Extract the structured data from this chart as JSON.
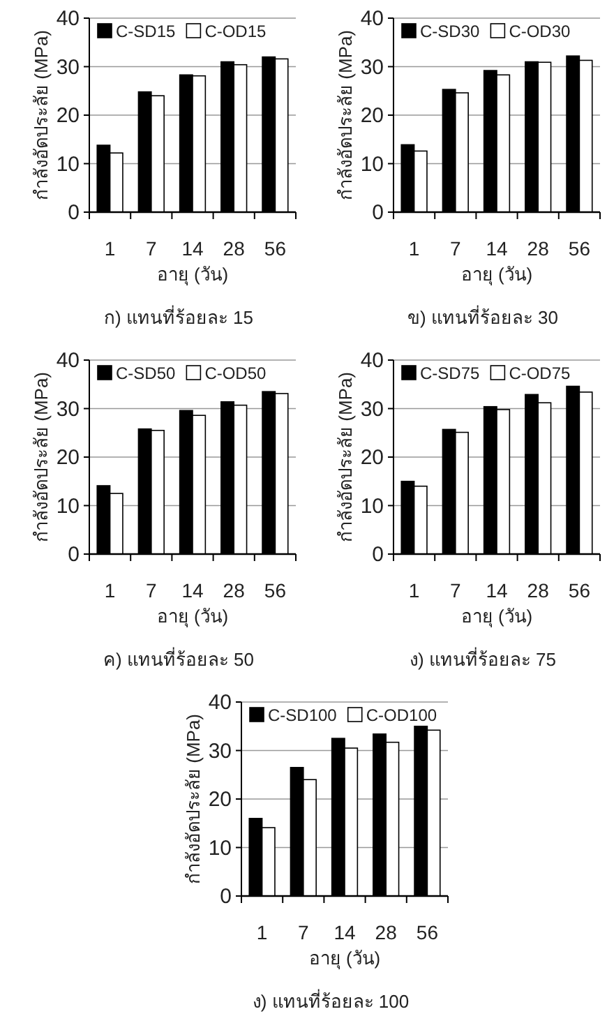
{
  "chart_data": [
    {
      "type": "bar",
      "title": "ก) แทนที่ร้อยละ 15",
      "xlabel": "อายุ (วัน)",
      "ylabel": "กำลังอัดประลัย (MPa)",
      "categories": [
        "1",
        "7",
        "14",
        "28",
        "56"
      ],
      "ylim": [
        0,
        40
      ],
      "yticks": [
        0,
        10,
        20,
        30,
        40
      ],
      "grid": "y",
      "legend": "top",
      "series": [
        {
          "name": "C-SD15",
          "color": "#000000",
          "values": [
            13.8,
            24.8,
            28.3,
            31,
            32
          ]
        },
        {
          "name": "C-OD15",
          "color": "#ffffff",
          "values": [
            12.2,
            24,
            28.1,
            30.4,
            31.6
          ]
        }
      ]
    },
    {
      "type": "bar",
      "title": "ข) แทนที่ร้อยละ 30",
      "xlabel": "อายุ (วัน)",
      "ylabel": "กำลังอัดประลัย (MPa)",
      "categories": [
        "1",
        "7",
        "14",
        "28",
        "56"
      ],
      "ylim": [
        0,
        40
      ],
      "yticks": [
        0,
        10,
        20,
        30,
        40
      ],
      "grid": "y",
      "legend": "top",
      "series": [
        {
          "name": "C-SD30",
          "color": "#000000",
          "values": [
            13.9,
            25.3,
            29.2,
            31,
            32.2
          ]
        },
        {
          "name": "C-OD30",
          "color": "#ffffff",
          "values": [
            12.6,
            24.6,
            28.3,
            30.9,
            31.3
          ]
        }
      ]
    },
    {
      "type": "bar",
      "title": "ค) แทนที่ร้อยละ 50",
      "xlabel": "อายุ (วัน)",
      "ylabel": "กำลังอัดประลัย (MPa)",
      "categories": [
        "1",
        "7",
        "14",
        "28",
        "56"
      ],
      "ylim": [
        0,
        40
      ],
      "yticks": [
        0,
        10,
        20,
        30,
        40
      ],
      "grid": "y",
      "legend": "top",
      "series": [
        {
          "name": "C-SD50",
          "color": "#000000",
          "values": [
            14.1,
            25.8,
            29.6,
            31.4,
            33.5
          ]
        },
        {
          "name": "C-OD50",
          "color": "#ffffff",
          "values": [
            12.5,
            25.5,
            28.6,
            30.7,
            33.1
          ]
        }
      ]
    },
    {
      "type": "bar",
      "title": "ง) แทนที่ร้อยละ 75",
      "xlabel": "อายุ (วัน)",
      "ylabel": "กำลังอัดประลัย (MPa)",
      "categories": [
        "1",
        "7",
        "14",
        "28",
        "56"
      ],
      "ylim": [
        0,
        40
      ],
      "yticks": [
        0,
        10,
        20,
        30,
        40
      ],
      "grid": "y",
      "legend": "top",
      "series": [
        {
          "name": "C-SD75",
          "color": "#000000",
          "values": [
            15,
            25.7,
            30.4,
            32.9,
            34.6
          ]
        },
        {
          "name": "C-OD75",
          "color": "#ffffff",
          "values": [
            14,
            25.1,
            29.8,
            31.2,
            33.4
          ]
        }
      ]
    },
    {
      "type": "bar",
      "title": "ง) แทนที่ร้อยละ 100",
      "xlabel": "อายุ (วัน)",
      "ylabel": "กำลังอัดประลัย (MPa)",
      "categories": [
        "1",
        "7",
        "14",
        "28",
        "56"
      ],
      "ylim": [
        0,
        40
      ],
      "yticks": [
        0,
        10,
        20,
        30,
        40
      ],
      "grid": "y",
      "legend": "top",
      "series": [
        {
          "name": "C-SD100",
          "color": "#000000",
          "values": [
            16,
            26.5,
            32.5,
            33.4,
            35
          ]
        },
        {
          "name": "C-OD100",
          "color": "#ffffff",
          "values": [
            14.1,
            24,
            30.5,
            31.7,
            34.2
          ]
        }
      ]
    }
  ]
}
